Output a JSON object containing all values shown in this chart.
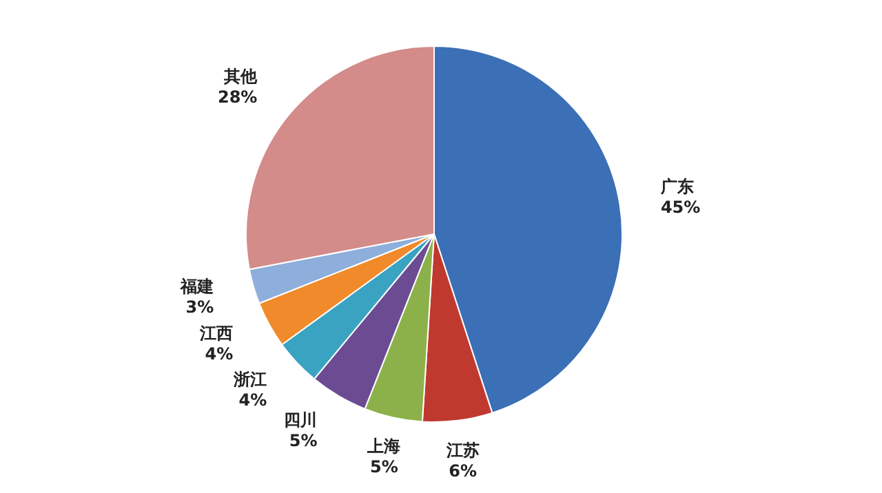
{
  "chart_data": {
    "type": "pie",
    "categories": [
      "广东",
      "江苏",
      "上海",
      "四川",
      "浙江",
      "江西",
      "福建",
      "其他"
    ],
    "values": [
      45,
      6,
      5,
      5,
      4,
      4,
      3,
      28
    ],
    "value_labels": [
      "45%",
      "6%",
      "5%",
      "5%",
      "4%",
      "4%",
      "3%",
      "28%"
    ],
    "colors": [
      "#3b6fb6",
      "#c0392f",
      "#8db14a",
      "#6b4c93",
      "#3aa3c1",
      "#f18a2a",
      "#8eaedb",
      "#d38c89"
    ]
  }
}
